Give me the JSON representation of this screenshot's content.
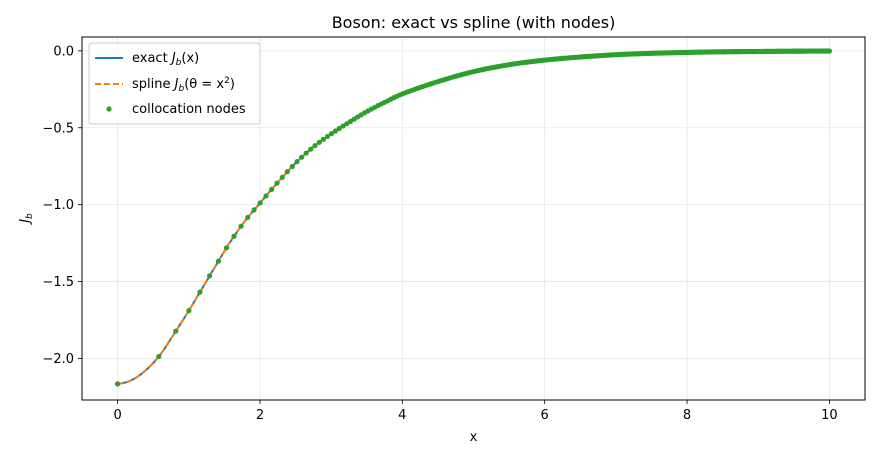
{
  "chart_data": {
    "type": "line",
    "title": "Boson: exact vs spline (with nodes)",
    "xlabel": "x",
    "ylabel": "J",
    "ylabel_sub": "b",
    "xlim": [
      -0.5,
      10.5
    ],
    "ylim": [
      -2.27,
      0.09
    ],
    "xticks": [
      0,
      2,
      4,
      6,
      8,
      10
    ],
    "xtick_labels": [
      "0",
      "2",
      "4",
      "6",
      "8",
      "10"
    ],
    "yticks": [
      0.0,
      -0.5,
      -1.0,
      -1.5,
      -2.0
    ],
    "ytick_labels": [
      "0.0",
      "−0.5",
      "−1.0",
      "−1.5",
      "−2.0"
    ],
    "grid": true,
    "legend_position": "upper-left",
    "legend": {
      "exact": {
        "prefix": "exact ",
        "sym": "J",
        "sub": "b",
        "rest": "(x)"
      },
      "spline": {
        "prefix": "spline ",
        "sym": "J",
        "sub": "b",
        "rest": "(θ = x",
        "sup": "2",
        "end": ")"
      },
      "nodes": {
        "label": "collocation nodes"
      }
    },
    "series": [
      {
        "key": "exact",
        "color": "#1f77b4",
        "style": "solid",
        "x": [
          0,
          0.2,
          0.4,
          0.6,
          0.8,
          1.0,
          1.2,
          1.4,
          1.6,
          1.8,
          2.0,
          2.25,
          2.5,
          2.75,
          3.0,
          3.25,
          3.5,
          3.75,
          4.0,
          4.5,
          5.0,
          5.5,
          6.0,
          6.5,
          7.0,
          7.5,
          8.0,
          8.5,
          9.0,
          9.5,
          10.0
        ],
        "y": [
          -2.165,
          -2.14,
          -2.075,
          -1.975,
          -1.835,
          -1.69,
          -1.535,
          -1.38,
          -1.23,
          -1.1,
          -0.99,
          -0.855,
          -0.73,
          -0.625,
          -0.54,
          -0.465,
          -0.395,
          -0.335,
          -0.28,
          -0.2,
          -0.135,
          -0.09,
          -0.06,
          -0.04,
          -0.025,
          -0.016,
          -0.01,
          -0.006,
          -0.004,
          -0.002,
          -0.001
        ]
      },
      {
        "key": "spline",
        "color": "#ff7f0e",
        "style": "dashed",
        "x": [
          0,
          0.2,
          0.4,
          0.6,
          0.8,
          1.0,
          1.2,
          1.4,
          1.6,
          1.8,
          2.0,
          2.25,
          2.5,
          2.75,
          3.0,
          3.25,
          3.5,
          3.75,
          4.0,
          4.5,
          5.0,
          5.5,
          6.0,
          6.5,
          7.0,
          7.5,
          8.0,
          8.5,
          9.0,
          9.5,
          10.0
        ],
        "y": [
          -2.165,
          -2.14,
          -2.075,
          -1.975,
          -1.835,
          -1.69,
          -1.535,
          -1.38,
          -1.23,
          -1.1,
          -0.99,
          -0.855,
          -0.73,
          -0.625,
          -0.54,
          -0.465,
          -0.395,
          -0.335,
          -0.28,
          -0.2,
          -0.135,
          -0.09,
          -0.06,
          -0.04,
          -0.025,
          -0.016,
          -0.01,
          -0.006,
          -0.004,
          -0.002,
          -0.001
        ]
      }
    ],
    "nodes": {
      "color": "#2ca02c",
      "count": 300,
      "x_range": [
        0,
        10
      ],
      "theta_spacing": "uniform in x^2"
    }
  }
}
